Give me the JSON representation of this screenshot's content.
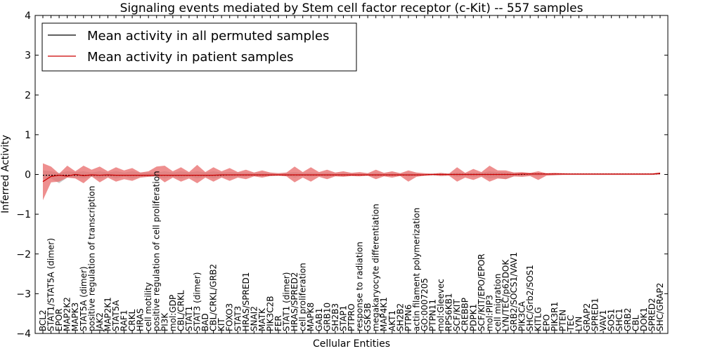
{
  "chart_data": {
    "type": "line",
    "title": "Signaling events mediated by Stem cell factor receptor (c-Kit) -- 557 samples",
    "xlabel": "Cellular Entities",
    "ylabel": "Inferred Activity",
    "ylim": [
      -4,
      4
    ],
    "yticks": [
      -4,
      -3,
      -2,
      -1,
      0,
      1,
      2,
      3,
      4
    ],
    "legend": {
      "placement": "top-left",
      "entries": [
        {
          "label": "Mean activity in all permuted samples",
          "color": "#000000"
        },
        {
          "label": "Mean activity in patient samples",
          "color": "#cc0000"
        }
      ]
    },
    "colors": {
      "patient": "#cc0000",
      "patient_band": "#e86a6a",
      "permuted_band": "#b8b8b8",
      "permuted": "#000000"
    },
    "categories": [
      "BCL2",
      "STAT1/STAT5A (dimer)",
      "EPOR",
      "MAP2K2",
      "MAPK3",
      "STAT5A (dimer)",
      "positive regulation of transcription",
      "JAK2",
      "MAP2K1",
      "STAT5A",
      "RAF1",
      "CRKL",
      "HRAS",
      "cell motility",
      "positive regulation of cell proliferation",
      "PI3K",
      "mol:GDP",
      "CBL/CRKL",
      "STAT1",
      "STAT3 (dimer)",
      "BAD",
      "CBL/CRKL/GRB2",
      "KIT",
      "FOXO3",
      "STAT3",
      "HRAS/SPRED1",
      "SNAI2",
      "MATK",
      "PIK3C2B",
      "FER",
      "STAT1 (dimer)",
      "HRAS/SPRED2",
      "cell proliferation",
      "MAPK8",
      "GAB1",
      "GRB10",
      "SH2B3",
      "STAP1",
      "PTPRO",
      "response to radiation",
      "GSK3B",
      "megakaryocyte differentiation",
      "MAP4K1",
      "AKT1",
      "SH2B2",
      "PTPN6",
      "actin filament polymerization",
      "GO:0007205",
      "PTPN11",
      "mol:Gleevec",
      "RPS6KB1",
      "SCF/KIT",
      "CREBBP",
      "PDPK1",
      "SCF/KIT/EPO/EPOR",
      "mol:PIP3",
      "cell migration",
      "LYN/TEC/p62DOK",
      "GRB2/SOCS1/VAV1",
      "PIK3CA",
      "SHC/Grb2/SOS1",
      "KITLG",
      "EPO",
      "PIK3R1",
      "PTEN",
      "TEC",
      "LYN",
      "GRAP2",
      "SPRED1",
      "VAV1",
      "SOS1",
      "SHC1",
      "GRB2",
      "CBL",
      "DOK1",
      "SPRED2",
      "SHC/GRAP2"
    ],
    "series": [
      {
        "name": "Mean activity in patient samples",
        "values": [
          -0.18,
          -0.05,
          -0.02,
          -0.04,
          0.0,
          -0.03,
          -0.01,
          -0.02,
          -0.01,
          -0.02,
          -0.02,
          -0.02,
          -0.02,
          -0.02,
          -0.02,
          -0.02,
          -0.02,
          -0.02,
          -0.02,
          -0.02,
          -0.02,
          -0.02,
          -0.01,
          -0.01,
          -0.01,
          -0.01,
          -0.01,
          -0.01,
          -0.01,
          -0.01,
          -0.01,
          -0.01,
          -0.01,
          -0.01,
          -0.01,
          -0.01,
          -0.01,
          -0.01,
          -0.01,
          -0.01,
          -0.01,
          -0.01,
          -0.01,
          -0.01,
          -0.01,
          -0.01,
          -0.01,
          -0.01,
          0.0,
          0.0,
          0.0,
          0.0,
          0.0,
          0.0,
          0.0,
          0.0,
          0.0,
          0.0,
          0.0,
          0.01,
          0.01,
          0.01,
          0.01,
          0.01,
          0.01,
          0.01,
          0.01,
          0.01,
          0.01,
          0.01,
          0.01,
          0.01,
          0.01,
          0.01,
          0.01,
          0.01,
          0.03
        ],
        "lower": [
          -0.65,
          -0.2,
          -0.18,
          -0.08,
          -0.1,
          -0.22,
          -0.05,
          -0.2,
          -0.08,
          -0.18,
          -0.12,
          -0.16,
          -0.08,
          -0.06,
          -0.04,
          -0.2,
          -0.08,
          -0.18,
          -0.1,
          -0.22,
          -0.08,
          -0.18,
          -0.08,
          -0.16,
          -0.08,
          -0.12,
          -0.05,
          -0.08,
          -0.04,
          -0.03,
          -0.05,
          -0.2,
          -0.08,
          -0.18,
          -0.06,
          -0.12,
          -0.05,
          -0.06,
          -0.04,
          -0.05,
          -0.03,
          -0.12,
          -0.05,
          -0.08,
          -0.04,
          -0.18,
          -0.06,
          -0.03,
          -0.02,
          -0.04,
          -0.03,
          -0.18,
          -0.08,
          -0.14,
          -0.06,
          -0.18,
          -0.1,
          -0.12,
          -0.05,
          -0.06,
          -0.04,
          -0.14,
          -0.03,
          -0.02,
          -0.01,
          -0.01,
          -0.01,
          -0.01,
          -0.01,
          -0.01,
          -0.01,
          -0.01,
          -0.01,
          -0.01,
          -0.01,
          -0.01,
          0.0
        ],
        "upper": [
          0.28,
          0.2,
          0.02,
          0.22,
          0.08,
          0.22,
          0.12,
          0.2,
          0.08,
          0.18,
          0.1,
          0.16,
          0.05,
          0.08,
          0.2,
          0.22,
          0.08,
          0.18,
          0.06,
          0.24,
          0.06,
          0.18,
          0.08,
          0.16,
          0.06,
          0.12,
          0.05,
          0.1,
          0.05,
          0.03,
          0.05,
          0.2,
          0.06,
          0.18,
          0.06,
          0.12,
          0.05,
          0.08,
          0.04,
          0.06,
          0.03,
          0.12,
          0.04,
          0.08,
          0.03,
          0.1,
          0.05,
          0.03,
          0.02,
          0.04,
          0.02,
          0.18,
          0.04,
          0.14,
          0.06,
          0.22,
          0.1,
          0.1,
          0.05,
          0.06,
          0.04,
          0.08,
          0.03,
          0.04,
          0.03,
          0.02,
          0.02,
          0.02,
          0.02,
          0.02,
          0.02,
          0.02,
          0.02,
          0.02,
          0.02,
          0.02,
          0.05
        ]
      },
      {
        "name": "Mean activity in all permuted samples",
        "values": [
          -0.02,
          -0.02,
          -0.02,
          -0.02,
          -0.02,
          -0.02,
          -0.02,
          -0.02,
          -0.02,
          -0.02,
          -0.02,
          -0.02,
          -0.02,
          -0.02,
          -0.02,
          -0.02,
          -0.02,
          -0.02,
          -0.02,
          -0.02,
          -0.02,
          -0.02,
          -0.02,
          -0.01,
          -0.01,
          -0.01,
          -0.01,
          -0.01,
          -0.01,
          -0.01,
          -0.01,
          -0.01,
          -0.01,
          -0.01,
          -0.01,
          -0.01,
          -0.01,
          -0.01,
          -0.01,
          -0.01,
          -0.01,
          -0.01,
          -0.01,
          -0.01,
          -0.01,
          -0.01,
          -0.01,
          -0.01,
          0.0,
          0.0,
          0.0,
          0.0,
          0.0,
          0.0,
          0.0,
          0.0,
          0.0,
          0.0,
          0.0,
          0.0,
          0.01,
          0.01,
          0.01,
          0.01,
          0.01,
          0.01,
          0.01,
          0.01,
          0.01,
          0.01,
          0.01,
          0.01,
          0.01,
          0.01,
          0.01,
          0.01,
          0.02
        ],
        "lower": [
          -0.12,
          -0.1,
          -0.22,
          -0.08,
          -0.08,
          -0.1,
          -0.06,
          -0.1,
          -0.06,
          -0.1,
          -0.06,
          -0.1,
          -0.06,
          -0.06,
          -0.06,
          -0.1,
          -0.06,
          -0.1,
          -0.06,
          -0.1,
          -0.06,
          -0.1,
          -0.06,
          -0.08,
          -0.06,
          -0.06,
          -0.04,
          -0.06,
          -0.04,
          -0.03,
          -0.04,
          -0.08,
          -0.04,
          -0.06,
          -0.04,
          -0.06,
          -0.03,
          -0.04,
          -0.03,
          -0.03,
          -0.03,
          -0.06,
          -0.03,
          -0.04,
          -0.03,
          -0.06,
          -0.04,
          -0.02,
          -0.02,
          -0.03,
          -0.02,
          -0.06,
          -0.04,
          -0.06,
          -0.04,
          -0.1,
          -0.08,
          -0.12,
          -0.05,
          -0.04,
          -0.03,
          -0.04,
          -0.02,
          -0.02,
          -0.01,
          -0.01,
          -0.01,
          -0.01,
          -0.01,
          -0.01,
          -0.01,
          -0.01,
          -0.01,
          -0.01,
          -0.01,
          -0.01,
          0.0
        ],
        "upper": [
          0.1,
          0.08,
          0.04,
          0.08,
          0.06,
          0.08,
          0.05,
          0.08,
          0.05,
          0.08,
          0.05,
          0.08,
          0.05,
          0.05,
          0.05,
          0.08,
          0.05,
          0.08,
          0.05,
          0.08,
          0.05,
          0.08,
          0.05,
          0.06,
          0.05,
          0.05,
          0.04,
          0.05,
          0.04,
          0.03,
          0.04,
          0.06,
          0.04,
          0.05,
          0.04,
          0.05,
          0.03,
          0.04,
          0.03,
          0.03,
          0.03,
          0.05,
          0.03,
          0.04,
          0.03,
          0.05,
          0.03,
          0.02,
          0.02,
          0.03,
          0.02,
          0.05,
          0.03,
          0.05,
          0.04,
          0.08,
          0.06,
          0.06,
          0.04,
          0.04,
          0.03,
          0.04,
          0.02,
          0.02,
          0.02,
          0.02,
          0.02,
          0.02,
          0.02,
          0.02,
          0.02,
          0.02,
          0.02,
          0.02,
          0.02,
          0.02,
          0.04
        ]
      }
    ]
  }
}
